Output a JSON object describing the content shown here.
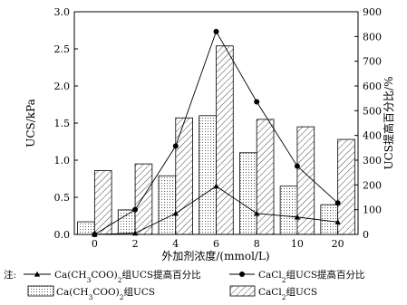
{
  "chart_data": {
    "type": "bar",
    "categories": [
      "0",
      "2",
      "4",
      "6",
      "8",
      "10",
      "20"
    ],
    "xlabel": "外加剂浓度/(mmol/L)",
    "ylabel": "UCS/kPa",
    "ylabel_right": "UCS提高百分比/%",
    "ylim": [
      0,
      3.0
    ],
    "ylim_right": [
      0,
      900
    ],
    "yticks": [
      "0.0",
      "0.5",
      "1.0",
      "1.5",
      "2.0",
      "2.5",
      "3.0"
    ],
    "yticks_right": [
      "0",
      "100",
      "200",
      "300",
      "400",
      "500",
      "600",
      "700",
      "800",
      "900"
    ],
    "bar_series": [
      {
        "label_prefix": "Ca(CH",
        "label_sub1": "3",
        "label_mid": "COO)",
        "label_sub2": "2",
        "label_suffix": "组UCS",
        "pattern": "dots",
        "values": [
          0.17,
          0.33,
          0.79,
          1.6,
          1.1,
          0.65,
          0.4
        ]
      },
      {
        "label_prefix": "CaCl",
        "label_sub1": "2",
        "label_mid": "",
        "label_sub2": "",
        "label_suffix": "组UCS",
        "pattern": "hatch",
        "values": [
          0.86,
          0.95,
          1.57,
          2.54,
          1.55,
          1.45,
          1.28
        ]
      }
    ],
    "line_series": [
      {
        "label_prefix": "Ca(CH",
        "label_sub1": "3",
        "label_mid": "COO)",
        "label_sub2": "2",
        "label_suffix": "组UCS提高百分比",
        "marker": "triangle",
        "axis": "right",
        "values": [
          0,
          5,
          85,
          195,
          85,
          70,
          50
        ]
      },
      {
        "label_prefix": "CaCl",
        "label_sub1": "2",
        "label_mid": "",
        "label_sub2": "",
        "label_suffix": "组UCS提高百分比",
        "marker": "circle",
        "axis": "right",
        "values": [
          0,
          100,
          357,
          820,
          536,
          276,
          127
        ]
      }
    ],
    "legend_note": "注:",
    "legend_position": "bottom"
  }
}
